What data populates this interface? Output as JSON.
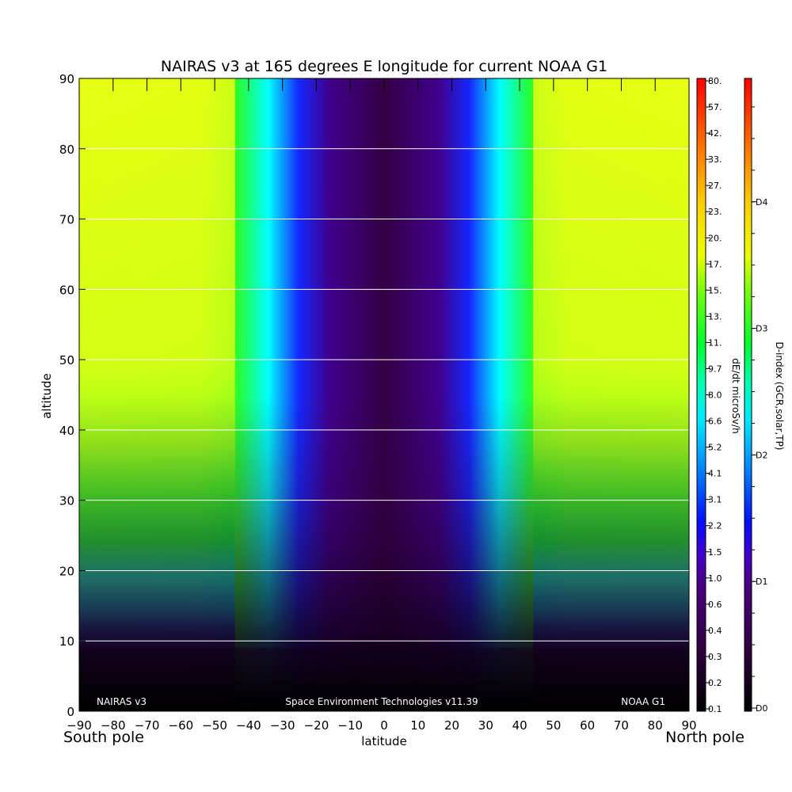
{
  "chart_data": {
    "type": "heatmap",
    "title": "NAIRAS v3 at 165 degrees E longitude for current NOAA G1",
    "xlabel": "latitude",
    "ylabel": "altitude",
    "x_range": [
      -90,
      90
    ],
    "y_range": [
      0,
      90
    ],
    "x_ticks": [
      "−90",
      "−80",
      "−70",
      "−60",
      "−50",
      "−40",
      "−30",
      "−20",
      "−10",
      "0",
      "10",
      "20",
      "30",
      "40",
      "50",
      "60",
      "70",
      "80",
      "90"
    ],
    "y_ticks": [
      "0",
      "10",
      "20",
      "30",
      "40",
      "50",
      "60",
      "70",
      "80",
      "90"
    ],
    "grid": "horizontal lines at altitude 10–90",
    "corner_labels": {
      "left": "South pole",
      "right": "North pole"
    },
    "annotations": {
      "left": "NAIRAS v3",
      "center": "Space Environment Technologies v11.39",
      "right": "NOAA G1"
    },
    "colorbar_dose": {
      "label": "dE/dt microSv/h",
      "ticks": [
        "0.1",
        "0.2",
        "0.3",
        "0.4",
        "0.6",
        "1.0",
        "1.5",
        "2.2",
        "3.1",
        "4.1",
        "5.2",
        "6.6",
        "8.0",
        "9.7",
        "11.",
        "13.",
        "15.",
        "17.",
        "20.",
        "23.",
        "27.",
        "33.",
        "42.",
        "57.",
        "80."
      ]
    },
    "colorbar_dindex": {
      "label": "D-index (GCR,solar,TP)",
      "ticks": [
        "D0",
        "D1",
        "D2",
        "D3",
        "D4"
      ]
    },
    "field_description_values": {
      "polar_high_altitude_dose": 17,
      "equatorial_low_altitude_dose": 0.1,
      "boundary_latitude_abs": 38
    },
    "colors": {
      "black": "#000000",
      "purple": "#3c0050",
      "blue": "#1428ff",
      "cyan": "#00ffff",
      "green": "#00ff28",
      "yellow_green": "#e6ff00",
      "red": "#ff0000"
    }
  }
}
